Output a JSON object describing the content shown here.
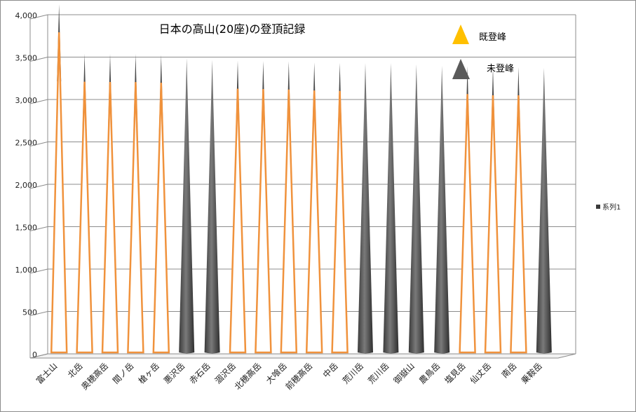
{
  "chart_data": {
    "type": "bar",
    "title": "日本の高山(20座)の登頂記録",
    "categories": [
      "富士山",
      "北岳",
      "奥穂高岳",
      "間ノ岳",
      "槍ヶ岳",
      "悪沢岳",
      "赤石岳",
      "涸沢岳",
      "北穂高岳",
      "大喰岳",
      "前穂高岳",
      "中岳",
      "荒川岳",
      "荒川岳",
      "御嶽山",
      "農鳥岳",
      "塩見岳",
      "仙丈岳",
      "南岳",
      "乗鞍岳"
    ],
    "series": [
      {
        "name": "系列1",
        "values": [
          3776,
          3193,
          3190,
          3189,
          3180,
          3141,
          3120,
          3110,
          3106,
          3101,
          3090,
          3084,
          3083,
          3083,
          3067,
          3051,
          3047,
          3033,
          3033,
          3026
        ]
      }
    ],
    "climbed": [
      true,
      true,
      true,
      true,
      true,
      false,
      false,
      true,
      true,
      true,
      true,
      true,
      false,
      false,
      false,
      false,
      true,
      true,
      true,
      false
    ],
    "ylim": [
      0,
      4000
    ],
    "yticks": [
      0,
      500,
      1000,
      1500,
      2000,
      2500,
      3000,
      3500,
      4000
    ],
    "ytick_labels": [
      "0",
      "500",
      "1,000",
      "1,500",
      "2,000",
      "2,500",
      "3,000",
      "3,500",
      "4,000"
    ],
    "grid": true,
    "xlabel": "",
    "ylabel": ""
  },
  "legend": {
    "climbed_label": "既登峰",
    "unclimbed_label": "未登峰",
    "series_label": "系列1"
  },
  "colors": {
    "climbed": "#f0923c",
    "climbed_marker": "#ffc000",
    "unclimbed": "#5a5a5a",
    "grid": "#8c8c8c"
  }
}
